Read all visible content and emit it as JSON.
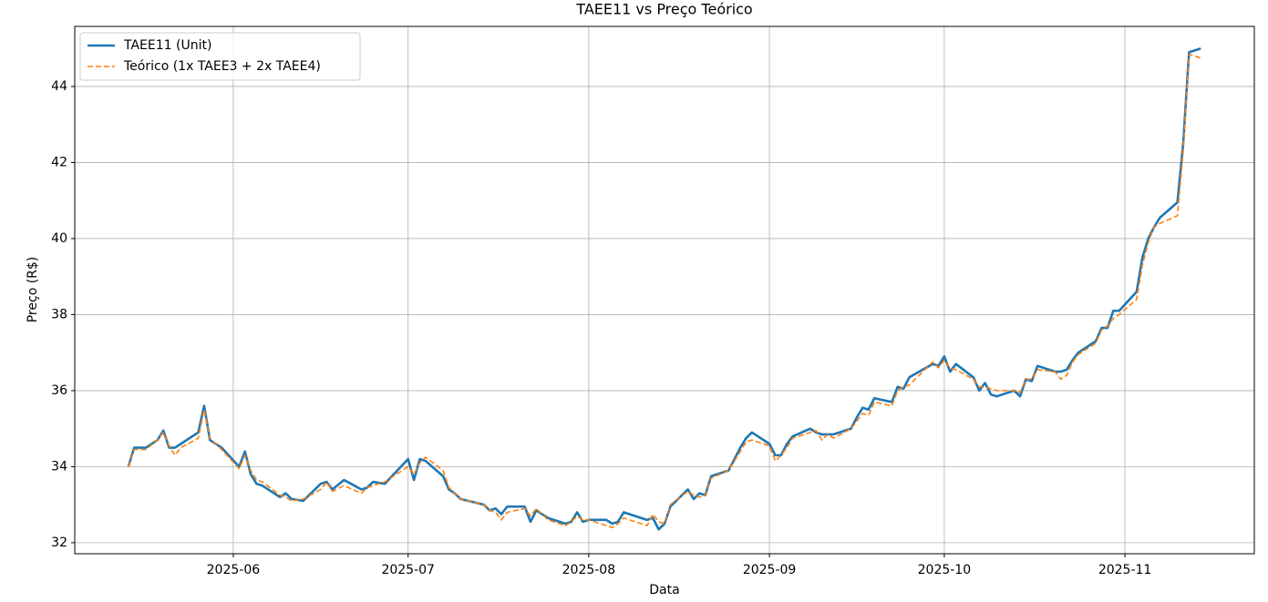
{
  "chart_data": {
    "type": "line",
    "title": "TAEE11 vs Preço Teórico",
    "x_label": "Data",
    "y_label": "Preço (R$)",
    "x": [
      20222,
      20223,
      20225,
      20227,
      20228,
      20229,
      20230,
      20231,
      20234,
      20235,
      20236,
      20238,
      20241,
      20242,
      20243,
      20244,
      20245,
      20248,
      20249,
      20250,
      20252,
      20255,
      20256,
      20257,
      20259,
      20262,
      20263,
      20264,
      20266,
      20270,
      20271,
      20272,
      20273,
      20276,
      20277,
      20278,
      20279,
      20283,
      20284,
      20285,
      20286,
      20287,
      20290,
      20291,
      20292,
      20294,
      20297,
      20298,
      20299,
      20300,
      20301,
      20304,
      20305,
      20306,
      20307,
      20311,
      20312,
      20313,
      20314,
      20315,
      20318,
      20319,
      20320,
      20321,
      20322,
      20325,
      20326,
      20327,
      20328,
      20329,
      20332,
      20333,
      20334,
      20335,
      20336,
      20339,
      20340,
      20341,
      20342,
      20343,
      20346,
      20347,
      20348,
      20349,
      20350,
      20353,
      20354,
      20355,
      20356,
      20360,
      20361,
      20362,
      20363,
      20364,
      20367,
      20368,
      20369,
      20370,
      20371,
      20374,
      20375,
      20376,
      20377,
      20378,
      20381,
      20382,
      20383,
      20384,
      20385,
      20388,
      20389,
      20390,
      20391,
      20392,
      20395,
      20396,
      20397,
      20398,
      20399,
      20402,
      20403,
      20404,
      20406
    ],
    "series": [
      {
        "name": "TAEE11 (Unit)",
        "color": "#1f77b4",
        "linestyle": "solid",
        "values": [
          34.0,
          34.5,
          34.5,
          34.7,
          34.95,
          34.5,
          34.5,
          34.6,
          34.9,
          35.6,
          34.7,
          34.5,
          34.0,
          34.4,
          33.8,
          33.55,
          33.5,
          33.2,
          33.3,
          33.15,
          33.1,
          33.55,
          33.6,
          33.4,
          33.65,
          33.4,
          33.45,
          33.6,
          33.55,
          34.2,
          33.65,
          34.2,
          34.15,
          33.75,
          33.4,
          33.3,
          33.15,
          33.0,
          32.85,
          32.9,
          32.75,
          32.95,
          32.95,
          32.55,
          32.85,
          32.65,
          32.5,
          32.55,
          32.8,
          32.55,
          32.6,
          32.6,
          32.5,
          32.55,
          32.8,
          32.6,
          32.65,
          32.35,
          32.5,
          32.95,
          33.4,
          33.15,
          33.3,
          33.25,
          33.75,
          33.9,
          34.2,
          34.5,
          34.75,
          34.9,
          34.6,
          34.3,
          34.3,
          34.6,
          34.8,
          35.0,
          34.9,
          34.85,
          34.85,
          34.85,
          35.0,
          35.3,
          35.55,
          35.5,
          35.8,
          35.7,
          36.1,
          36.05,
          36.35,
          36.7,
          36.65,
          36.9,
          36.5,
          36.7,
          36.35,
          36.0,
          36.2,
          35.9,
          35.85,
          36.0,
          35.85,
          36.3,
          36.25,
          36.65,
          36.5,
          36.5,
          36.55,
          36.8,
          37.0,
          37.3,
          37.65,
          37.65,
          38.1,
          38.1,
          38.6,
          39.5,
          40.0,
          40.3,
          40.55,
          40.95,
          42.5,
          44.9,
          45.0
        ]
      },
      {
        "name": "Teórico (1x TAEE3 + 2x TAEE4)",
        "color": "#ff7f0e",
        "linestyle": "dashed",
        "values": [
          34.0,
          34.45,
          34.45,
          34.7,
          34.9,
          34.55,
          34.3,
          34.5,
          34.75,
          35.5,
          34.75,
          34.45,
          33.95,
          34.3,
          33.9,
          33.65,
          33.6,
          33.25,
          33.2,
          33.1,
          33.15,
          33.4,
          33.6,
          33.35,
          33.5,
          33.3,
          33.45,
          33.5,
          33.6,
          34.0,
          33.8,
          34.1,
          34.25,
          33.9,
          33.45,
          33.3,
          33.15,
          33.0,
          32.85,
          32.8,
          32.6,
          32.8,
          32.9,
          32.7,
          32.9,
          32.6,
          32.45,
          32.55,
          32.7,
          32.6,
          32.6,
          32.45,
          32.4,
          32.5,
          32.65,
          32.45,
          32.75,
          32.55,
          32.5,
          33.0,
          33.35,
          33.25,
          33.2,
          33.25,
          33.7,
          33.9,
          34.15,
          34.4,
          34.65,
          34.7,
          34.55,
          34.15,
          34.3,
          34.5,
          34.75,
          34.9,
          34.95,
          34.7,
          34.85,
          34.75,
          35.0,
          35.2,
          35.4,
          35.35,
          35.7,
          35.6,
          36.0,
          36.1,
          36.15,
          36.75,
          36.6,
          36.8,
          36.6,
          36.55,
          36.3,
          36.1,
          36.1,
          36.05,
          36.0,
          36.0,
          35.95,
          36.3,
          36.3,
          36.55,
          36.5,
          36.3,
          36.4,
          36.75,
          36.95,
          37.25,
          37.6,
          37.7,
          37.9,
          38.0,
          38.4,
          39.3,
          39.9,
          40.3,
          40.4,
          40.6,
          42.3,
          44.85,
          44.75
        ]
      }
    ],
    "xlim": [
      20212.8,
      20415.2
    ],
    "xticks": [
      {
        "value": 20240,
        "label": "2025-06"
      },
      {
        "value": 20270,
        "label": "2025-07"
      },
      {
        "value": 20301,
        "label": "2025-08"
      },
      {
        "value": 20332,
        "label": "2025-09"
      },
      {
        "value": 20362,
        "label": "2025-10"
      },
      {
        "value": 20393,
        "label": "2025-11"
      }
    ],
    "ylim": [
      31.71,
      45.58
    ],
    "yticks": [
      32,
      34,
      36,
      38,
      40,
      42,
      44
    ],
    "grid": true,
    "legend": "upper left"
  }
}
